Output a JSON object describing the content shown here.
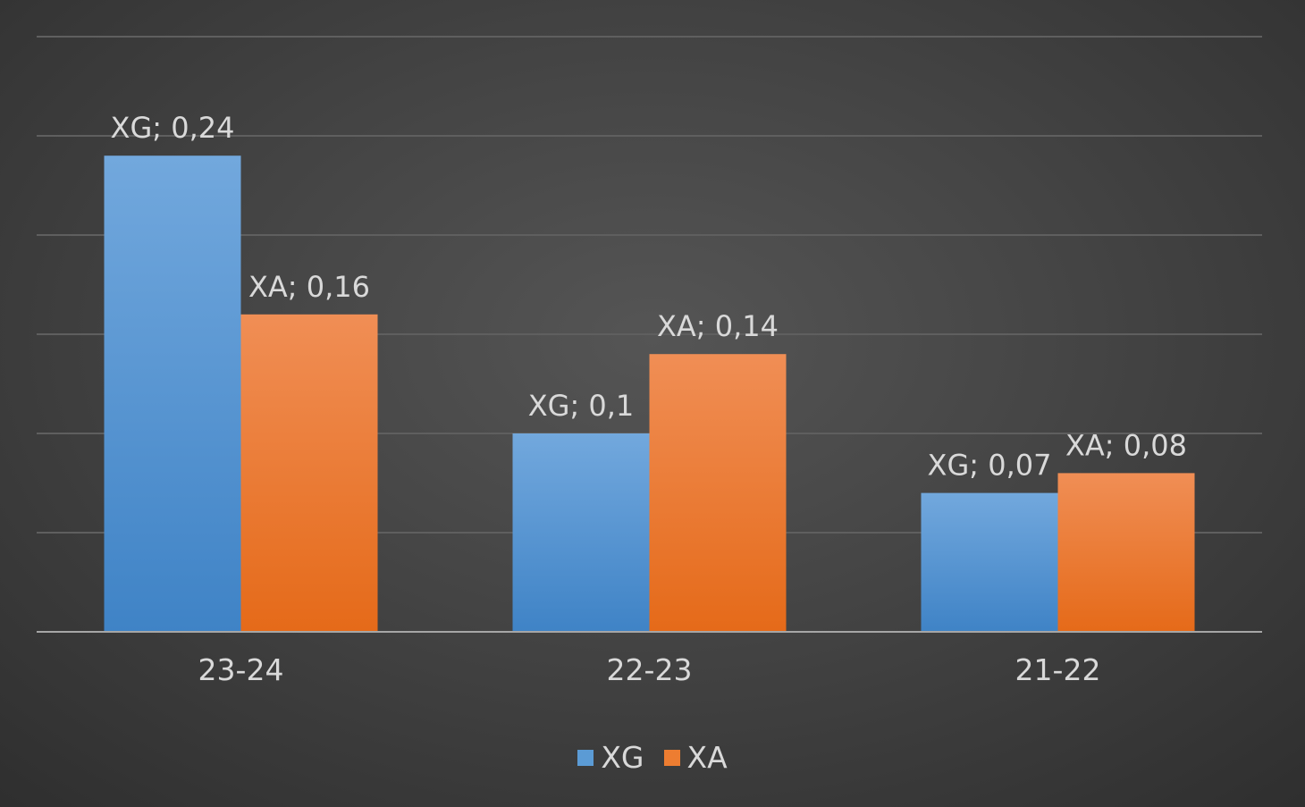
{
  "chart_data": {
    "type": "bar",
    "categories": [
      "23-24",
      "22-23",
      "21-22"
    ],
    "series": [
      {
        "name": "XG",
        "values": [
          0.24,
          0.1,
          0.07
        ],
        "color": "#5b9bd5"
      },
      {
        "name": "XA",
        "values": [
          0.16,
          0.14,
          0.08
        ],
        "color": "#ed7d31"
      }
    ],
    "data_labels": [
      [
        "XG; 0,24",
        "XG; 0,1",
        "XG; 0,07"
      ],
      [
        "XA; 0,16",
        "XA; 0,14",
        "XA; 0,08"
      ]
    ],
    "ylim": [
      0,
      0.3
    ],
    "grid": true,
    "legend_position": "bottom"
  }
}
